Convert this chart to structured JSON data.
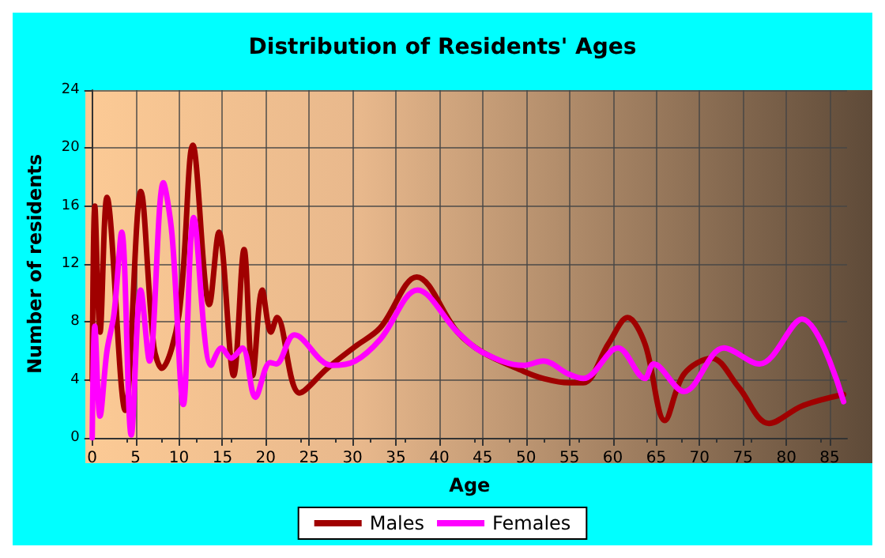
{
  "chart_data": {
    "type": "line",
    "title": "Distribution of Residents' Ages",
    "xlabel": "Age",
    "ylabel": "Number of residents",
    "xlim": [
      0,
      87
    ],
    "xticks": [
      0,
      5,
      10,
      15,
      20,
      25,
      30,
      35,
      40,
      45,
      50,
      55,
      60,
      65,
      70,
      75,
      80,
      85
    ],
    "ylim": [
      0,
      24
    ],
    "yticks": [
      0,
      4,
      8,
      12,
      16,
      20,
      24
    ],
    "grid": true,
    "legend": "bottom",
    "marker": "none",
    "line_style": "solid",
    "series": [
      {
        "name": "Males",
        "color": "#a00000",
        "x": [
          0,
          0.3,
          0.9,
          1.7,
          3.8,
          5.6,
          7.1,
          8,
          10,
          11.6,
          13.5,
          14.6,
          16.3,
          17.5,
          18.5,
          19.6,
          20.6,
          21.3,
          23.9,
          27.1,
          30.3,
          33.2,
          37.4,
          42.1,
          45,
          49.7,
          52,
          54.9,
          56.6,
          59.5,
          61.7,
          63.7,
          66,
          68.2,
          71.4,
          74.5,
          78,
          81.8,
          86.6
        ],
        "values": [
          4,
          16,
          7.3,
          16.6,
          1.9,
          17,
          6.3,
          4.8,
          8.5,
          20.2,
          9.2,
          14.2,
          4.3,
          13,
          4.3,
          10.2,
          7.3,
          8.3,
          3.1,
          4.8,
          6.3,
          7.6,
          11.1,
          7.3,
          5.9,
          4.6,
          4.1,
          3.8,
          3.8,
          6.5,
          8.3,
          6.5,
          1.2,
          4.4,
          5.5,
          3.5,
          1,
          2.2,
          3
        ]
      },
      {
        "name": "Females",
        "color": "#ff00ff",
        "x": [
          0,
          0.3,
          0.9,
          1.7,
          2.5,
          3.4,
          4.5,
          5.6,
          6.6,
          8.2,
          9.2,
          10.5,
          11.7,
          13.7,
          14.9,
          16,
          17.3,
          18.8,
          20.5,
          21.2,
          23.3,
          27.6,
          30.3,
          33.2,
          37.5,
          42.1,
          45,
          49.7,
          52,
          54.9,
          56.6,
          60.6,
          63.7,
          64.7,
          68.2,
          72.8,
          76.9,
          81.8,
          86.6
        ],
        "values": [
          0,
          7.7,
          1.5,
          6,
          8.5,
          14.2,
          0.2,
          10.2,
          5.3,
          17.6,
          14,
          2.3,
          15.2,
          5,
          6.2,
          5.5,
          6.2,
          2.8,
          5.2,
          5.1,
          7.1,
          5,
          5.3,
          6.8,
          10.2,
          7.3,
          5.9,
          5,
          5.3,
          4.4,
          4.1,
          6.2,
          4.1,
          5.1,
          3.2,
          6.2,
          5.1,
          8.2,
          2.5
        ]
      }
    ]
  }
}
